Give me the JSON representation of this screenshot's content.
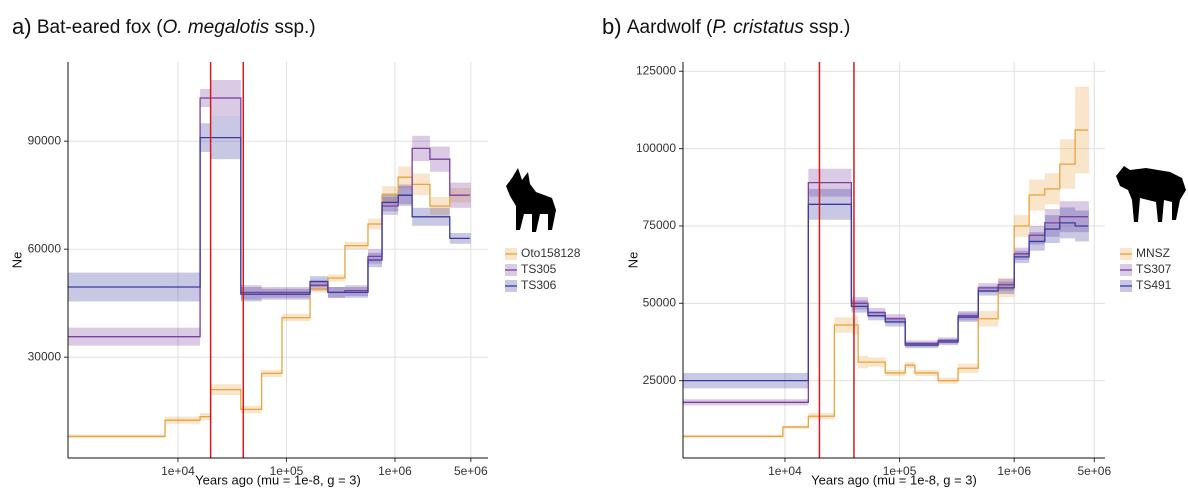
{
  "chart_data": [
    {
      "type": "line",
      "panel": "a)",
      "title": [
        "Bat-eared fox (",
        "O. megalotis",
        " ssp.)"
      ],
      "xlabel": "Years ago (mu = 1e-8, g = 3)",
      "ylabel": "Ne",
      "log_x": true,
      "grid": true,
      "xlim": [
        970,
        7200000
      ],
      "ylim": [
        2000,
        112000
      ],
      "xticks": [
        {
          "value": 10000,
          "label": "1e+04"
        },
        {
          "value": 100000,
          "label": "1e+05"
        },
        {
          "value": 1000000,
          "label": "1e+06"
        },
        {
          "value": 5000000,
          "label": "5e+06"
        }
      ],
      "yticks": [
        30000,
        60000,
        90000
      ],
      "vlines": {
        "values": [
          20000,
          40000
        ],
        "color": "#d7191c"
      },
      "x": [
        970,
        7600,
        16000,
        20000,
        38000,
        59000,
        91000,
        165000,
        241000,
        346000,
        564000,
        760000,
        1070000,
        1440000,
        2100000,
        3200000,
        4900000
      ],
      "series": [
        {
          "name": "Oto158128",
          "color": "#e8a33d",
          "values": [
            8000,
            12500,
            13500,
            21000,
            15500,
            25500,
            41000,
            49000,
            52000,
            61000,
            67000,
            75000,
            80000,
            78000,
            72000,
            75000,
            75000
          ],
          "errors": [
            500,
            1000,
            1000,
            1500,
            1000,
            1000,
            1000,
            1000,
            1000,
            1000,
            1500,
            2500,
            3000,
            3000,
            2500,
            2000,
            2000
          ]
        },
        {
          "name": "TS305",
          "color": "#7b3f9e",
          "values": [
            35700,
            35700,
            102000,
            102000,
            48000,
            48000,
            48000,
            50000,
            48000,
            48500,
            58000,
            72000,
            75000,
            88000,
            85000,
            75000,
            75000
          ],
          "errors": [
            2500,
            2500,
            2500,
            5000,
            2000,
            1500,
            1500,
            1500,
            1500,
            1500,
            2000,
            2500,
            3000,
            3500,
            3500,
            3500,
            3500
          ]
        },
        {
          "name": "TS306",
          "color": "#3b3b9e",
          "values": [
            49500,
            49500,
            91000,
            91000,
            47500,
            47500,
            47500,
            51000,
            48000,
            48000,
            57000,
            73000,
            75000,
            69000,
            69000,
            63000,
            63000
          ],
          "errors": [
            4000,
            4000,
            4000,
            6000,
            2000,
            1500,
            1500,
            1500,
            1500,
            1500,
            2000,
            2500,
            2500,
            2500,
            2500,
            1500,
            1500
          ]
        }
      ]
    },
    {
      "type": "line",
      "panel": "b)",
      "title": [
        "Aardwolf (",
        "P. cristatus",
        " ssp.)"
      ],
      "xlabel": "Years ago (mu = 1e-8, g = 3)",
      "ylabel": "Ne",
      "log_x": true,
      "grid": true,
      "xlim": [
        1290,
        6200000
      ],
      "ylim": [
        0,
        128000
      ],
      "xticks": [
        {
          "value": 10000,
          "label": "1e+04"
        },
        {
          "value": 100000,
          "label": "1e+05"
        },
        {
          "value": 1000000,
          "label": "1e+06"
        },
        {
          "value": 5000000,
          "label": "5e+06"
        }
      ],
      "yticks": [
        25000,
        50000,
        75000,
        100000,
        125000
      ],
      "vlines": {
        "values": [
          20000,
          40000
        ],
        "color": "#d7191c"
      },
      "x": [
        1290,
        9600,
        16000,
        20000,
        27000,
        38000,
        43500,
        53000,
        75000,
        112000,
        136000,
        217000,
        324000,
        486000,
        725000,
        1000000,
        1350000,
        1850000,
        2500000,
        3400000,
        4400000
      ],
      "series": [
        {
          "name": "MNSZ",
          "color": "#e8a33d",
          "values": [
            7000,
            10000,
            13500,
            13500,
            43000,
            43000,
            31000,
            31000,
            27500,
            30000,
            27500,
            25000,
            29000,
            45000,
            55000,
            75000,
            85000,
            87000,
            95000,
            106000,
            106000
          ],
          "errors": [
            500,
            500,
            1000,
            1000,
            2500,
            3000,
            2000,
            1500,
            1000,
            1000,
            1000,
            1000,
            1500,
            2500,
            3000,
            3500,
            5000,
            5000,
            8000,
            14000,
            14000
          ]
        },
        {
          "name": "TS307",
          "color": "#7b3f9e",
          "values": [
            18000,
            18000,
            89000,
            89000,
            89000,
            50000,
            50000,
            47000,
            45000,
            37000,
            37000,
            38000,
            46000,
            55000,
            56000,
            66000,
            72000,
            76000,
            78000,
            78000,
            78000
          ],
          "errors": [
            1000,
            1000,
            4500,
            4500,
            4500,
            2000,
            2000,
            1500,
            1500,
            1000,
            1000,
            1000,
            1500,
            1500,
            2000,
            2000,
            3000,
            4500,
            5000,
            5000,
            5000
          ]
        },
        {
          "name": "TS491",
          "color": "#3b3b9e",
          "values": [
            25000,
            25000,
            82000,
            82000,
            82000,
            49000,
            49000,
            46000,
            44000,
            36500,
            36500,
            37500,
            45500,
            54000,
            55000,
            65000,
            70000,
            74000,
            76000,
            75000,
            75000
          ],
          "errors": [
            2500,
            2500,
            5000,
            5000,
            5000,
            2000,
            2000,
            1500,
            1500,
            1000,
            1000,
            1000,
            1500,
            1500,
            2000,
            2000,
            3000,
            4500,
            5000,
            5000,
            5000
          ]
        }
      ]
    }
  ]
}
